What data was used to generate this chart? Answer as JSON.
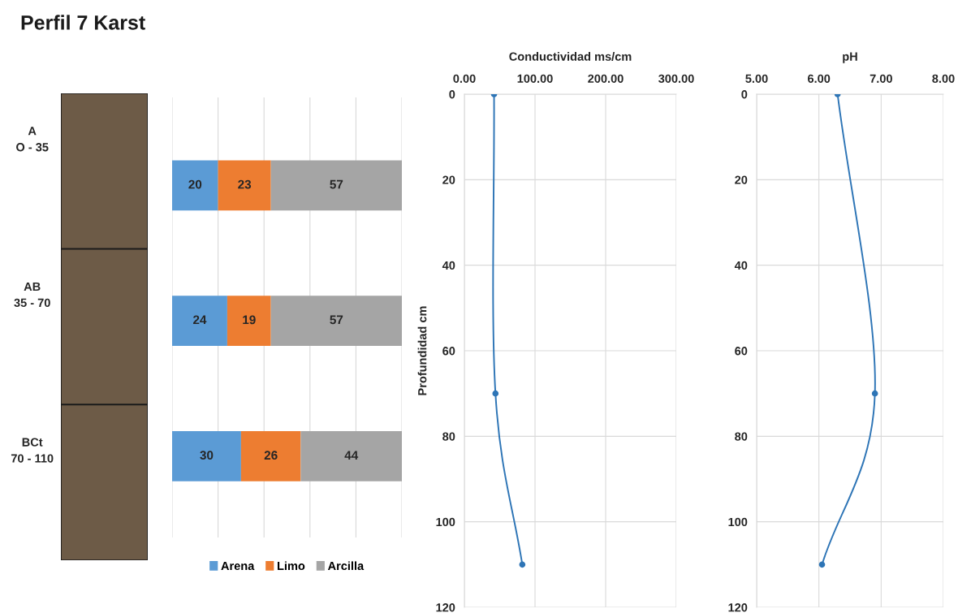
{
  "chart_data": [
    {
      "type": "other",
      "title": "Perfil 7 Karst",
      "categories": [
        "A\nO - 35",
        "AB\n35 - 70",
        "BCt\n70 - 110"
      ],
      "colors": [
        "#6d5b47",
        "#6d5b47",
        "#6d5b47"
      ]
    },
    {
      "type": "bar",
      "orientation": "horizontal",
      "stacked": true,
      "categories": [
        null,
        null,
        null
      ],
      "series": [
        {
          "name": "Arena",
          "color": "#5b9bd5",
          "values": [
            20,
            24,
            30
          ]
        },
        {
          "name": "Limo",
          "color": "#ed7d31",
          "values": [
            23,
            19,
            26
          ]
        },
        {
          "name": "Arcilla",
          "color": "#a5a5a5",
          "values": [
            57,
            57,
            44
          ]
        }
      ],
      "xlim": [
        0,
        100
      ],
      "xticks": [
        {
          "value": 0,
          "label": null
        },
        {
          "value": 20,
          "label": null
        },
        {
          "value": 40,
          "label": null
        },
        {
          "value": 60,
          "label": null
        },
        {
          "value": 80,
          "label": null
        },
        {
          "value": 100,
          "label": null
        }
      ],
      "grid": "x",
      "data_labels": true,
      "legend": "bottom"
    },
    {
      "type": "line",
      "xlabel": "Conductividad ms/cm",
      "ylabel": "Profundidad cm",
      "series": [
        {
          "color": "#2e75b6",
          "x": [
            42,
            44,
            82
          ],
          "values": [
            0,
            70,
            110
          ]
        }
      ],
      "xlim": [
        0,
        300
      ],
      "xticks": [
        {
          "value": 0,
          "label": "0.00"
        },
        {
          "value": 100,
          "label": "100.00"
        },
        {
          "value": 200,
          "label": "200.00"
        },
        {
          "value": 300,
          "label": "300.00"
        }
      ],
      "ylim": [
        120,
        0
      ],
      "yticks": [
        0,
        20,
        40,
        60,
        80,
        100,
        120
      ],
      "grid": true,
      "marker": "circle"
    },
    {
      "type": "line",
      "xlabel": "pH",
      "series": [
        {
          "color": "#2e75b6",
          "x": [
            6.3,
            6.9,
            6.05
          ],
          "values": [
            0,
            70,
            110
          ]
        }
      ],
      "xlim": [
        5,
        8
      ],
      "xticks": [
        {
          "value": 5,
          "label": "5.00"
        },
        {
          "value": 6,
          "label": "6.00"
        },
        {
          "value": 7,
          "label": "7.00"
        },
        {
          "value": 8,
          "label": "8.00"
        }
      ],
      "ylim": [
        120,
        0
      ],
      "yticks": [
        0,
        20,
        40,
        60,
        80,
        100,
        120
      ],
      "grid": true,
      "marker": "circle"
    }
  ]
}
